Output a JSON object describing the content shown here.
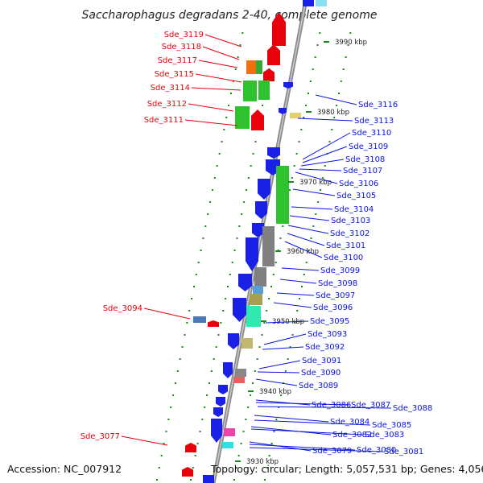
{
  "title": "Saccharophagus degradans 2-40, complete genome",
  "accession": "Accession: NC_007912",
  "topology": "Topology: circular; Length: 5,057,531 bp; Genes: 4,056",
  "colors": {
    "forward": "#e8000b",
    "reverse": "#0a14e0",
    "backbone": "#8c8c8c",
    "scale_tick": "#1a8a1a"
  },
  "scale_ticks": [
    {
      "label": "3990 kbp",
      "kbp": 3990
    },
    {
      "label": "3980 kbp",
      "kbp": 3980
    },
    {
      "label": "3970 kbp",
      "kbp": 3970
    },
    {
      "label": "3960 kbp",
      "kbp": 3960
    },
    {
      "label": "3950 kbp",
      "kbp": 3950
    },
    {
      "label": "3940 kbp",
      "kbp": 3940
    },
    {
      "label": "3930 kbp",
      "kbp": 3930
    }
  ],
  "left_labels": [
    "Sde_3119",
    "Sde_3118",
    "Sde_3117",
    "Sde_3115",
    "Sde_3114",
    "Sde_3112",
    "Sde_3111",
    "Sde_3094",
    "Sde_3077"
  ],
  "right_labels": [
    "Sde_3116",
    "Sde_3113",
    "Sde_3110",
    "Sde_3109",
    "Sde_3108",
    "Sde_3107",
    "Sde_3106",
    "Sde_3105",
    "Sde_3104",
    "Sde_3103",
    "Sde_3102",
    "Sde_3101",
    "Sde_3100",
    "Sde_3099",
    "Sde_3098",
    "Sde_3097",
    "Sde_3096",
    "Sde_3095",
    "Sde_3093",
    "Sde_3092",
    "Sde_3091",
    "Sde_3090",
    "Sde_3089",
    "Sde_3086",
    "Sde_3087",
    "Sde_3088",
    "Sde_3084",
    "Sde_3085",
    "Sde_3082",
    "Sde_3083",
    "Sde_3079",
    "Sde_3080",
    "Sde_3081"
  ]
}
